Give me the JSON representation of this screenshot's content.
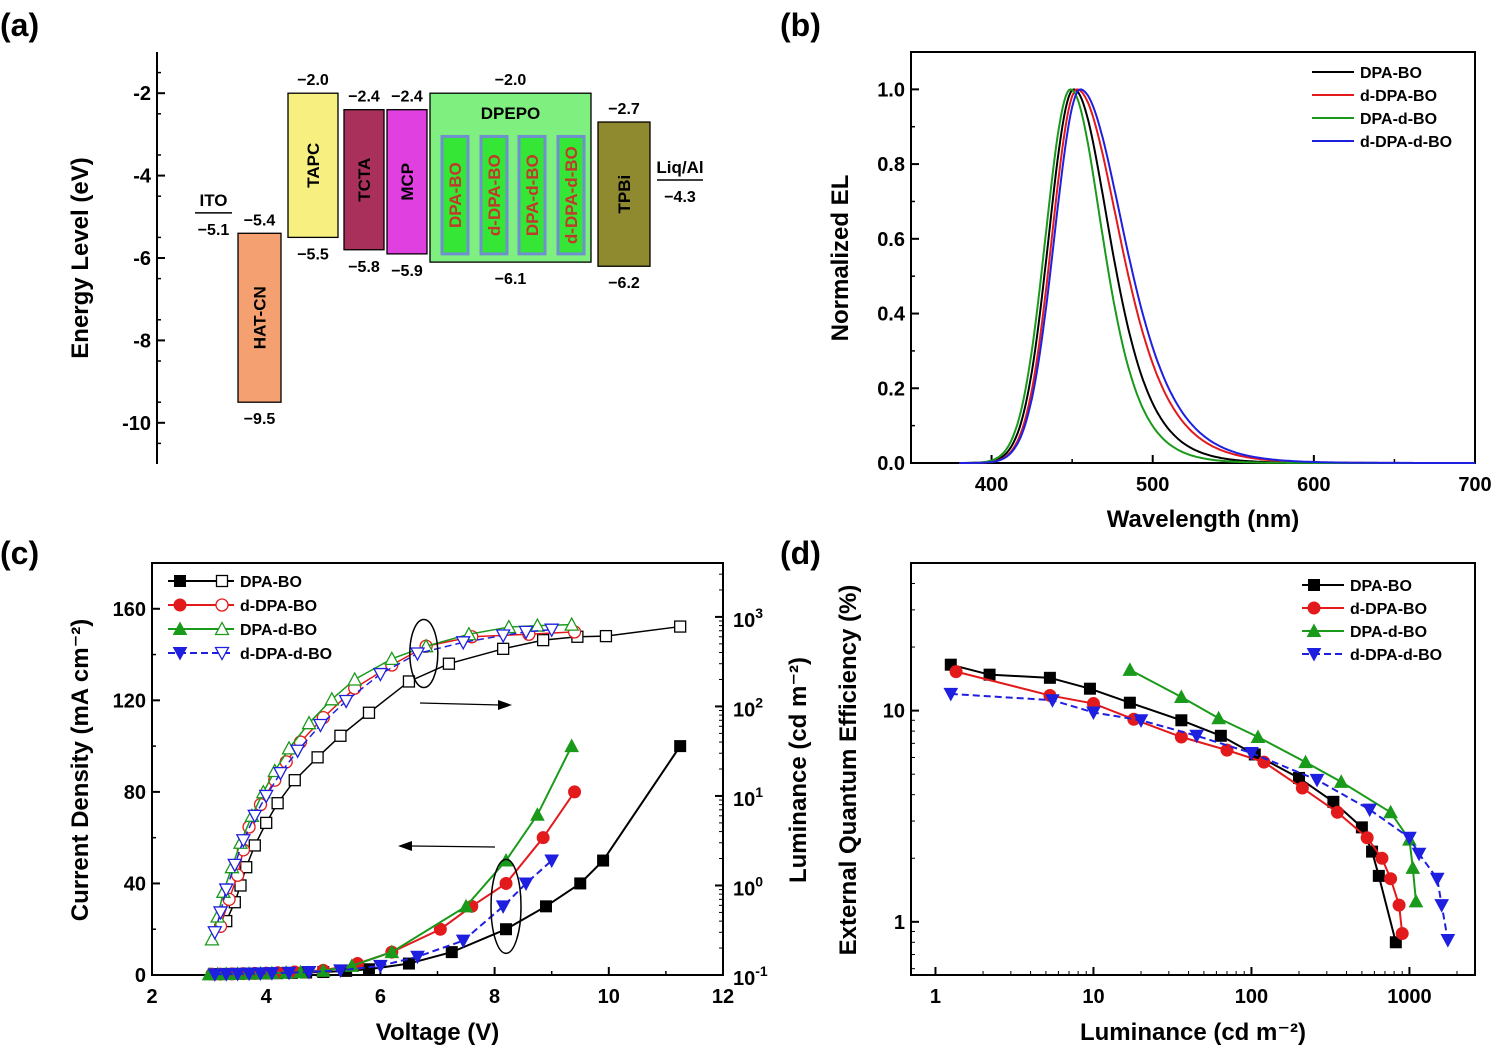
{
  "panels": {
    "a": "(a)",
    "b": "(b)",
    "c": "(c)",
    "d": "(d)"
  },
  "chart_data": [
    {
      "id": "a",
      "type": "energy-level-diagram",
      "ylabel": "Energy Level (eV)",
      "ylim": [
        -11,
        -1
      ],
      "yticks": [
        -2,
        -4,
        -6,
        -8,
        -10
      ],
      "ytick_labels": [
        "-2",
        "-4",
        "-6",
        "-8",
        "-10"
      ],
      "layers": [
        {
          "name": "HAT-CN",
          "top": -5.4,
          "bottom": -9.5,
          "top_label": "−5.4",
          "bottom_label": "−9.5",
          "color": "#f4a071",
          "vertical": true
        },
        {
          "name": "TAPC",
          "top": -2.0,
          "bottom": -5.5,
          "top_label": "−2.0",
          "bottom_label": "−5.5",
          "color": "#f7f080",
          "vertical": true
        },
        {
          "name": "TCTA",
          "top": -2.4,
          "bottom": -5.8,
          "top_label": "−2.4",
          "bottom_label": "−5.8",
          "color": "#a8305a",
          "vertical": true
        },
        {
          "name": "MCP",
          "top": -2.4,
          "bottom": -5.9,
          "top_label": "−2.4",
          "bottom_label": "−5.9",
          "color": "#e040e0",
          "vertical": true
        },
        {
          "name": "DPEPO",
          "top": -2.0,
          "bottom": -6.1,
          "top_label": "−2.0",
          "bottom_label": "−6.1",
          "color": "#7ff07f",
          "vertical": false
        },
        {
          "name": "TPBi",
          "top": -2.7,
          "bottom": -6.2,
          "top_label": "−2.7",
          "bottom_label": "−6.2",
          "color": "#8f8a30",
          "vertical": true
        }
      ],
      "emitters": [
        "DPA-BO",
        "d-DPA-BO",
        "DPA-d-BO",
        "d-DPA-d-BO"
      ],
      "emitter_text_color": "#c0392b",
      "electrodes": [
        {
          "name": "ITO",
          "level": -5.1,
          "label": "−5.1"
        },
        {
          "name": "Liq/Al",
          "level": -4.3,
          "label": "−4.3"
        }
      ]
    },
    {
      "id": "b",
      "type": "line",
      "xlabel": "Wavelength (nm)",
      "ylabel": "Normalized EL",
      "xlim": [
        350,
        700
      ],
      "ylim": [
        0,
        1.1
      ],
      "xticks": [
        400,
        500,
        600,
        700
      ],
      "xtick_labels": [
        "400",
        "500",
        "600",
        "700"
      ],
      "yticks": [
        0,
        0.2,
        0.4,
        0.6,
        0.8,
        1.0
      ],
      "ytick_labels": [
        "0.0",
        "0.2",
        "0.4",
        "0.6",
        "0.8",
        "1.0"
      ],
      "legend": "top-right",
      "series": [
        {
          "name": "DPA-BO",
          "color": "#000000",
          "peak": 451,
          "sl": 15.5,
          "sr": 27
        },
        {
          "name": "d-DPA-BO",
          "color": "#e31a1c",
          "peak": 453,
          "sl": 15.5,
          "sr": 32
        },
        {
          "name": "DPA-d-BO",
          "color": "#1a9a1a",
          "peak": 449,
          "sl": 15.5,
          "sr": 24
        },
        {
          "name": "d-DPA-d-BO",
          "color": "#1f1fe0",
          "peak": 455,
          "sl": 16,
          "sr": 33
        }
      ]
    },
    {
      "id": "c",
      "type": "line",
      "xlabel": "Voltage (V)",
      "ylabel": "Current Density (mA cm⁻²)",
      "y2label": "Luminance (cd m⁻²)",
      "xlim": [
        2,
        12
      ],
      "ylim": [
        0,
        180
      ],
      "y2lim": [
        0.1,
        4000
      ],
      "y2_scale": "log",
      "xticks": [
        2,
        4,
        6,
        8,
        10,
        12
      ],
      "xtick_labels": [
        "2",
        "4",
        "6",
        "8",
        "10",
        "12"
      ],
      "yticks": [
        0,
        40,
        80,
        120,
        160
      ],
      "ytick_labels": [
        "0",
        "40",
        "80",
        "120",
        "160"
      ],
      "y2ticks": [
        0.1,
        1,
        10,
        100,
        1000
      ],
      "y2tick_labels": [
        [
          "10",
          "-1"
        ],
        [
          "10",
          "0"
        ],
        [
          "10",
          "1"
        ],
        [
          "10",
          "2"
        ],
        [
          "10",
          "3"
        ]
      ],
      "legend": "top-left",
      "series": [
        {
          "name": "DPA-BO",
          "color": "#000000",
          "marker": "square",
          "dash": "solid",
          "current": [
            [
              3.1,
              0.4
            ],
            [
              3.2,
              0.4
            ],
            [
              3.35,
              0.5
            ],
            [
              3.5,
              0.5
            ],
            [
              3.65,
              0.6
            ],
            [
              3.8,
              0.6
            ],
            [
              4.0,
              0.7
            ],
            [
              4.2,
              0.8
            ],
            [
              4.45,
              0.9
            ],
            [
              4.7,
              1.1
            ],
            [
              5.0,
              1.3
            ],
            [
              5.4,
              1.8
            ],
            [
              5.8,
              2.5
            ],
            [
              6.5,
              5
            ],
            [
              7.25,
              10
            ],
            [
              8.2,
              20
            ],
            [
              8.9,
              30
            ],
            [
              9.5,
              40
            ],
            [
              9.9,
              50
            ],
            [
              11.25,
              100
            ]
          ],
          "luminance": [
            [
              3.3,
              0.4
            ],
            [
              3.45,
              0.65
            ],
            [
              3.55,
              1.0
            ],
            [
              3.65,
              1.6
            ],
            [
              3.8,
              2.8
            ],
            [
              4.0,
              5.0
            ],
            [
              4.2,
              8.3
            ],
            [
              4.5,
              15
            ],
            [
              4.9,
              27
            ],
            [
              5.3,
              47
            ],
            [
              5.8,
              85
            ],
            [
              6.5,
              190
            ],
            [
              7.2,
              300
            ],
            [
              8.15,
              440
            ],
            [
              8.85,
              550
            ],
            [
              9.45,
              600
            ],
            [
              9.95,
              610
            ],
            [
              11.25,
              780
            ]
          ]
        },
        {
          "name": "d-DPA-BO",
          "color": "#e31a1c",
          "marker": "circle",
          "dash": "solid",
          "current": [
            [
              3.05,
              0.4
            ],
            [
              3.2,
              0.4
            ],
            [
              3.4,
              0.5
            ],
            [
              3.6,
              0.6
            ],
            [
              3.8,
              0.7
            ],
            [
              4.0,
              0.8
            ],
            [
              4.2,
              1.0
            ],
            [
              4.5,
              1.3
            ],
            [
              5.0,
              2
            ],
            [
              5.6,
              5
            ],
            [
              6.2,
              10
            ],
            [
              7.05,
              20
            ],
            [
              7.6,
              30
            ],
            [
              8.2,
              40
            ],
            [
              8.85,
              60
            ],
            [
              9.4,
              80
            ]
          ],
          "luminance": [
            [
              3.2,
              0.35
            ],
            [
              3.35,
              0.7
            ],
            [
              3.5,
              1.3
            ],
            [
              3.6,
              2.5
            ],
            [
              3.7,
              4.5
            ],
            [
              3.9,
              8
            ],
            [
              4.15,
              15
            ],
            [
              4.35,
              24
            ],
            [
              4.6,
              40
            ],
            [
              5.0,
              75
            ],
            [
              5.55,
              160
            ],
            [
              6.2,
              290
            ],
            [
              6.8,
              470
            ],
            [
              7.6,
              600
            ],
            [
              8.6,
              640
            ],
            [
              9.4,
              680
            ]
          ]
        },
        {
          "name": "DPA-d-BO",
          "color": "#1a9a1a",
          "marker": "triangle-up",
          "dash": "solid",
          "current": [
            [
              3.0,
              0.3
            ],
            [
              3.15,
              0.4
            ],
            [
              3.3,
              0.4
            ],
            [
              3.5,
              0.5
            ],
            [
              3.7,
              0.6
            ],
            [
              3.9,
              0.7
            ],
            [
              4.1,
              0.8
            ],
            [
              4.35,
              1.0
            ],
            [
              4.6,
              1.2
            ],
            [
              5.0,
              1.8
            ],
            [
              5.5,
              4
            ],
            [
              6.2,
              10
            ],
            [
              7.5,
              30
            ],
            [
              8.2,
              50
            ],
            [
              8.75,
              70
            ],
            [
              9.35,
              100
            ]
          ],
          "luminance": [
            [
              3.05,
              0.25
            ],
            [
              3.15,
              0.45
            ],
            [
              3.25,
              0.85
            ],
            [
              3.4,
              1.6
            ],
            [
              3.55,
              3.0
            ],
            [
              3.75,
              6
            ],
            [
              3.95,
              11
            ],
            [
              4.15,
              19
            ],
            [
              4.4,
              34
            ],
            [
              4.75,
              65
            ],
            [
              5.15,
              120
            ],
            [
              5.55,
              200
            ],
            [
              6.2,
              340
            ],
            [
              6.8,
              470
            ],
            [
              7.55,
              640
            ],
            [
              8.25,
              770
            ],
            [
              8.75,
              800
            ],
            [
              9.35,
              820
            ]
          ]
        },
        {
          "name": "d-DPA-d-BO",
          "color": "#1f1fe0",
          "marker": "triangle-down",
          "dash": "dash",
          "current": [
            [
              3.1,
              0.3
            ],
            [
              3.3,
              0.4
            ],
            [
              3.5,
              0.5
            ],
            [
              3.7,
              0.6
            ],
            [
              3.9,
              0.7
            ],
            [
              4.1,
              0.8
            ],
            [
              4.4,
              1.0
            ],
            [
              4.75,
              1.3
            ],
            [
              5.3,
              2
            ],
            [
              6.0,
              4
            ],
            [
              6.65,
              8
            ],
            [
              7.45,
              15
            ],
            [
              8.15,
              30
            ],
            [
              8.55,
              40
            ],
            [
              9.0,
              50
            ]
          ],
          "luminance": [
            [
              3.1,
              0.3
            ],
            [
              3.2,
              0.5
            ],
            [
              3.3,
              0.9
            ],
            [
              3.45,
              1.7
            ],
            [
              3.6,
              3.2
            ],
            [
              3.8,
              6
            ],
            [
              4.0,
              10
            ],
            [
              4.25,
              18
            ],
            [
              4.55,
              32
            ],
            [
              4.95,
              62
            ],
            [
              5.4,
              115
            ],
            [
              6.0,
              230
            ],
            [
              6.65,
              390
            ],
            [
              7.45,
              520
            ],
            [
              8.15,
              620
            ],
            [
              8.55,
              680
            ],
            [
              9.0,
              720
            ]
          ]
        }
      ]
    },
    {
      "id": "d",
      "type": "line",
      "xlabel": "Luminance (cd m⁻²)",
      "ylabel": "External Quantum Efficiency (%)",
      "x_scale": "log",
      "y_scale": "log",
      "xlim": [
        0.7,
        2600
      ],
      "ylim": [
        0.56,
        50
      ],
      "xticks": [
        1,
        10,
        100,
        1000
      ],
      "xtick_labels": [
        "1",
        "10",
        "100",
        "1000"
      ],
      "yticks": [
        1,
        10
      ],
      "ytick_labels": [
        "1",
        "10"
      ],
      "legend": "top-right",
      "series": [
        {
          "name": "DPA-BO",
          "color": "#000000",
          "marker": "square",
          "dash": "solid",
          "points": [
            [
              1.25,
              16.5
            ],
            [
              2.2,
              14.8
            ],
            [
              5.3,
              14.3
            ],
            [
              9.5,
              12.7
            ],
            [
              17,
              10.9
            ],
            [
              36,
              9.0
            ],
            [
              64,
              7.6
            ],
            [
              105,
              6.2
            ],
            [
              200,
              4.8
            ],
            [
              330,
              3.7
            ],
            [
              500,
              2.8
            ],
            [
              580,
              2.15
            ],
            [
              640,
              1.65
            ],
            [
              820,
              0.8
            ]
          ]
        },
        {
          "name": "d-DPA-BO",
          "color": "#e31a1c",
          "marker": "circle",
          "dash": "solid",
          "points": [
            [
              1.35,
              15.3
            ],
            [
              5.3,
              11.8
            ],
            [
              10,
              10.8
            ],
            [
              18,
              9.1
            ],
            [
              36,
              7.5
            ],
            [
              70,
              6.5
            ],
            [
              120,
              5.7
            ],
            [
              210,
              4.3
            ],
            [
              350,
              3.3
            ],
            [
              540,
              2.5
            ],
            [
              670,
              2.0
            ],
            [
              760,
              1.6
            ],
            [
              860,
              1.2
            ],
            [
              900,
              0.88
            ]
          ]
        },
        {
          "name": "DPA-d-BO",
          "color": "#1a9a1a",
          "marker": "triangle-up",
          "dash": "solid",
          "points": [
            [
              17,
              15.6
            ],
            [
              36,
              11.6
            ],
            [
              62,
              9.2
            ],
            [
              110,
              7.5
            ],
            [
              220,
              5.7
            ],
            [
              370,
              4.6
            ],
            [
              760,
              3.3
            ],
            [
              1000,
              2.45
            ],
            [
              1050,
              1.8
            ],
            [
              1100,
              1.25
            ]
          ]
        },
        {
          "name": "d-DPA-d-BO",
          "color": "#1f1fe0",
          "marker": "triangle-down",
          "dash": "dash",
          "points": [
            [
              1.25,
              12.0
            ],
            [
              5.5,
              11.2
            ],
            [
              10,
              9.8
            ],
            [
              20,
              9.0
            ],
            [
              45,
              7.6
            ],
            [
              100,
              6.3
            ],
            [
              260,
              4.7
            ],
            [
              560,
              3.4
            ],
            [
              1000,
              2.5
            ],
            [
              1150,
              2.1
            ],
            [
              1500,
              1.6
            ],
            [
              1600,
              1.2
            ],
            [
              1750,
              0.82
            ]
          ]
        }
      ]
    }
  ]
}
